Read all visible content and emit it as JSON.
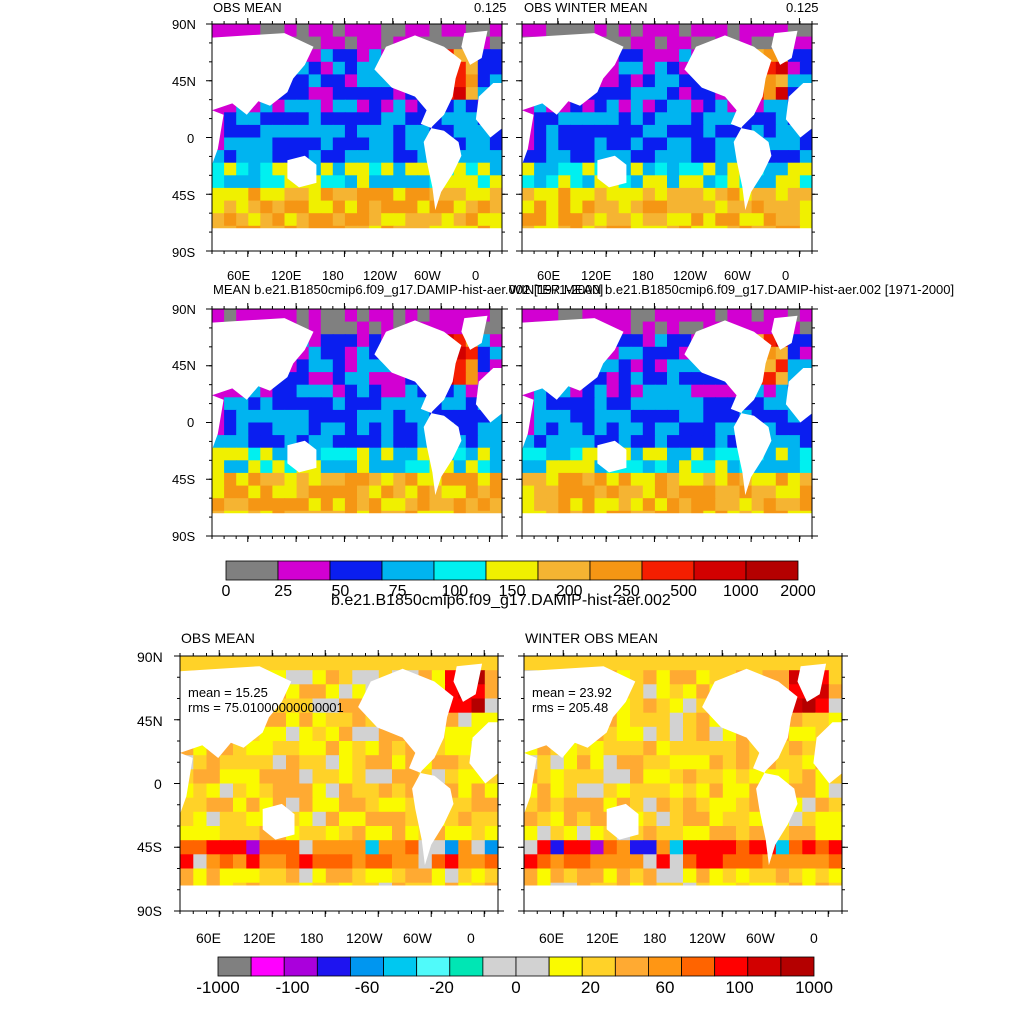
{
  "panels": [
    {
      "id": "p1",
      "left_title": "OBS MEAN",
      "right_title": "0.125",
      "style": "a",
      "seed": 11
    },
    {
      "id": "p2",
      "left_title": "OBS WINTER MEAN",
      "right_title": "0.125",
      "style": "a",
      "seed": 23
    },
    {
      "id": "p3",
      "left_title": "MEAN b.e21.B1850cmip6.f09_g17.DAMIP-hist-aer.002 [1971-2000]",
      "right_title": "",
      "style": "a",
      "seed": 37
    },
    {
      "id": "p4",
      "left_title": "WINTER MEAN b.e21.B1850cmip6.f09_g17.DAMIP-hist-aer.002 [1971-2000]",
      "right_title": "",
      "style": "a",
      "seed": 53
    },
    {
      "id": "p5",
      "left_title": "OBS MEAN",
      "right_title": "",
      "style": "b",
      "seed": 71,
      "mean": "mean = 15.25",
      "rms": "rms = 75.01000000000001"
    },
    {
      "id": "p6",
      "left_title": "WINTER OBS MEAN",
      "right_title": "",
      "style": "b",
      "seed": 89,
      "mean": "mean = 23.92",
      "rms": "rms = 205.48"
    }
  ],
  "lat_labels": [
    "90N",
    "45N",
    "0",
    "45S",
    "90S"
  ],
  "lon_labels": [
    "60E",
    "120E",
    "180",
    "120W",
    "60W",
    "0"
  ],
  "colorbar1": {
    "title": "b.e21.B1850cmip6.f09_g17.DAMIP-hist-aer.002",
    "labels": [
      "0",
      "25",
      "50",
      "75",
      "100",
      "150",
      "200",
      "250",
      "500",
      "1000",
      "2000"
    ],
    "colors": [
      "#808080",
      "#d200d2",
      "#0a1ef0",
      "#00b4f0",
      "#00f0f0",
      "#f0f000",
      "#f5b432",
      "#f59614",
      "#f51e00",
      "#d20000",
      "#b40000"
    ]
  },
  "colorbar2": {
    "labels": [
      "-1000",
      "-100",
      "-60",
      "-20",
      "0",
      "20",
      "60",
      "100",
      "1000"
    ],
    "colors": [
      "#808080",
      "#ff00ff",
      "#aa00dc",
      "#1e14f0",
      "#0096f0",
      "#00c8f0",
      "#50fafa",
      "#00e6b4",
      "#d2d2d2",
      "#d2d2d2",
      "#fafa00",
      "#ffd228",
      "#ffaa32",
      "#ff9614",
      "#ff6400",
      "#ff0000",
      "#d20000",
      "#b40000"
    ]
  }
}
